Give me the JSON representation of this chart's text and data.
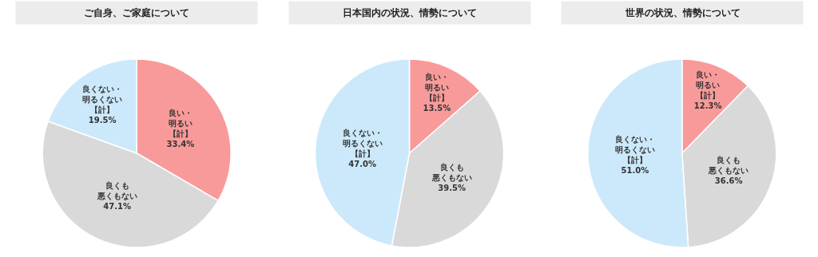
{
  "chart_data": [
    {
      "type": "pie",
      "title": "ご自身、ご家庭について",
      "categories": [
        "良い・明るい【計】",
        "良くも悪くもない",
        "良くない・明るくない【計】"
      ],
      "values": [
        33.4,
        47.1,
        19.5
      ],
      "value_labels": [
        "33.4%",
        "47.1%",
        "19.5%"
      ],
      "colors": [
        "#f99a9a",
        "#d9d9d9",
        "#cce9fb"
      ],
      "legend": false
    },
    {
      "type": "pie",
      "title": "日本国内の状況、情勢について",
      "categories": [
        "良い・明るい【計】",
        "良くも悪くもない",
        "良くない・明るくない【計】"
      ],
      "values": [
        13.5,
        39.5,
        47.0
      ],
      "value_labels": [
        "13.5%",
        "39.5%",
        "47.0%"
      ],
      "colors": [
        "#f99a9a",
        "#d9d9d9",
        "#cce9fb"
      ],
      "legend": false
    },
    {
      "type": "pie",
      "title": "世界の状況、情勢について",
      "categories": [
        "良い・明るい【計】",
        "良くも悪くもない",
        "良くない・明るくない【計】"
      ],
      "values": [
        12.3,
        36.6,
        51.0
      ],
      "value_labels": [
        "12.3%",
        "36.6%",
        "51.0%"
      ],
      "colors": [
        "#f99a9a",
        "#d9d9d9",
        "#cce9fb"
      ],
      "legend": false
    }
  ]
}
